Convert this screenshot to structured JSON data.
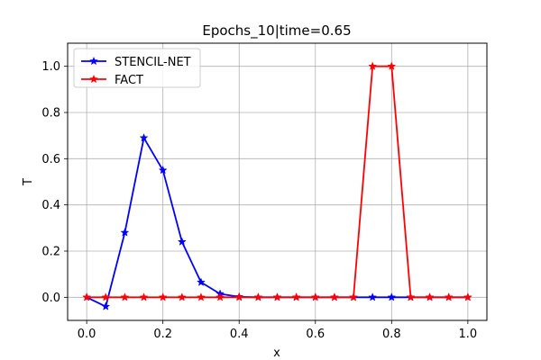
{
  "chart_data": {
    "type": "line",
    "title": "Epochs_10|time=0.65",
    "xlabel": "x",
    "ylabel": "T",
    "xlim": [
      -0.05,
      1.05
    ],
    "ylim": [
      -0.1,
      1.1
    ],
    "xticks": [
      "0.0",
      "0.2",
      "0.4",
      "0.6",
      "0.8",
      "1.0"
    ],
    "yticks": [
      "0.0",
      "0.2",
      "0.4",
      "0.6",
      "0.8",
      "1.0"
    ],
    "grid": true,
    "legend_position": "top-left",
    "x": [
      0.0,
      0.05,
      0.1,
      0.15,
      0.2,
      0.25,
      0.3,
      0.35,
      0.4,
      0.45,
      0.5,
      0.55,
      0.6,
      0.65,
      0.7,
      0.75,
      0.8,
      0.85,
      0.9,
      0.95,
      1.0
    ],
    "series": [
      {
        "name": "STENCIL-NET",
        "color": "#0000ff",
        "values": [
          0.0,
          -0.04,
          0.28,
          0.69,
          0.55,
          0.24,
          0.065,
          0.015,
          0.002,
          0.0,
          0.0,
          0.0,
          0.0,
          0.0,
          0.0,
          0.0,
          0.0,
          0.0,
          0.0,
          0.0,
          0.0
        ]
      },
      {
        "name": "FACT",
        "color": "#ff0000",
        "values": [
          0.0,
          0.0,
          0.0,
          0.0,
          0.0,
          0.0,
          0.0,
          0.0,
          0.0,
          0.0,
          0.0,
          0.0,
          0.0,
          0.0,
          0.0,
          1.0,
          1.0,
          0.0,
          0.0,
          0.0,
          0.0
        ]
      }
    ]
  }
}
